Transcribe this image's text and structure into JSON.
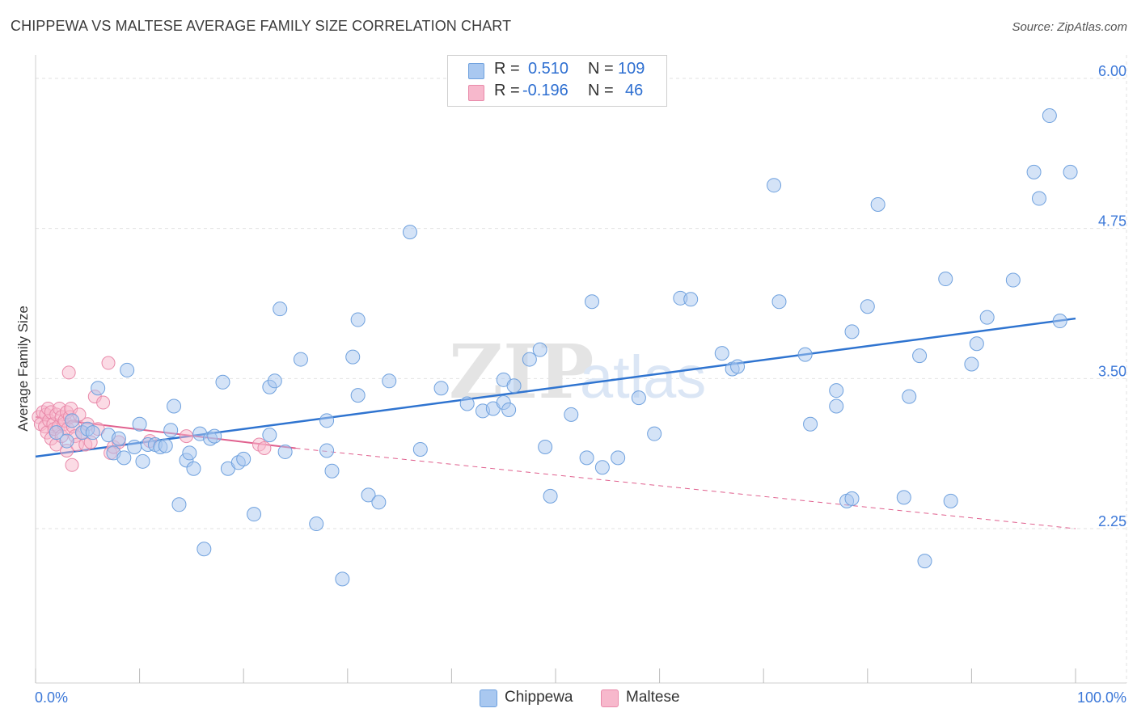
{
  "title": "CHIPPEWA VS MALTESE AVERAGE FAMILY SIZE CORRELATION CHART",
  "source": "Source: ZipAtlas.com",
  "watermark": {
    "zip": "ZIP",
    "atlas": "atlas"
  },
  "legend": {
    "rows": [
      {
        "r_label": "R =",
        "r_value": "0.510",
        "n_label": "N =",
        "n_value": "109",
        "color": "#6fa8e8"
      },
      {
        "r_label": "R =",
        "r_value": "-0.196",
        "n_label": "N =",
        "n_value": "46",
        "color": "#f090b0"
      }
    ]
  },
  "bottom_legend": [
    "Chippewa",
    "Maltese"
  ],
  "colors": {
    "chippewa_fill": "#a9c8f0",
    "chippewa_stroke": "#6fa1de",
    "chippewa_line": "#2f74d0",
    "maltese_fill": "#f7b8cc",
    "maltese_stroke": "#e98aaa",
    "maltese_line": "#e0608e",
    "axis_text": "#3c78d8"
  },
  "chart_data": {
    "type": "scatter",
    "title": "CHIPPEWA VS MALTESE AVERAGE FAMILY SIZE CORRELATION CHART",
    "xlabel": "",
    "ylabel": "Average Family Size",
    "xlim": [
      0,
      100
    ],
    "ylim": [
      1.25,
      6.1
    ],
    "x_tick_labels": [
      "0.0%",
      "100.0%"
    ],
    "y_ticks": [
      2.25,
      3.5,
      4.75,
      6.0
    ],
    "y_tick_labels": [
      "2.25",
      "3.50",
      "4.75",
      "6.00"
    ],
    "grid": true,
    "series": [
      {
        "name": "Chippewa",
        "r": 0.51,
        "n": 109,
        "trend": {
          "x": [
            0,
            100
          ],
          "y": [
            2.85,
            4.0
          ]
        },
        "points": [
          [
            2.0,
            3.05
          ],
          [
            3.0,
            2.98
          ],
          [
            3.5,
            3.15
          ],
          [
            4.5,
            3.05
          ],
          [
            5.0,
            3.08
          ],
          [
            5.5,
            3.05
          ],
          [
            6.0,
            3.42
          ],
          [
            7.0,
            3.03
          ],
          [
            7.5,
            2.88
          ],
          [
            8.0,
            3.0
          ],
          [
            8.5,
            2.84
          ],
          [
            8.8,
            3.57
          ],
          [
            9.5,
            2.93
          ],
          [
            10.0,
            3.12
          ],
          [
            10.3,
            2.81
          ],
          [
            10.8,
            2.95
          ],
          [
            11.5,
            2.95
          ],
          [
            12.0,
            2.93
          ],
          [
            12.5,
            2.94
          ],
          [
            13.0,
            3.07
          ],
          [
            13.3,
            3.27
          ],
          [
            13.8,
            2.45
          ],
          [
            14.5,
            2.82
          ],
          [
            14.8,
            2.88
          ],
          [
            15.2,
            2.75
          ],
          [
            15.8,
            3.04
          ],
          [
            16.2,
            2.08
          ],
          [
            16.8,
            3.0
          ],
          [
            17.2,
            3.02
          ],
          [
            18.0,
            3.47
          ],
          [
            18.5,
            2.75
          ],
          [
            19.5,
            2.8
          ],
          [
            20.0,
            2.83
          ],
          [
            21.0,
            2.37
          ],
          [
            22.5,
            3.03
          ],
          [
            22.5,
            3.43
          ],
          [
            23.0,
            3.48
          ],
          [
            23.5,
            4.08
          ],
          [
            24.0,
            2.89
          ],
          [
            25.5,
            3.66
          ],
          [
            27.0,
            2.29
          ],
          [
            28.0,
            3.15
          ],
          [
            28.0,
            2.9
          ],
          [
            28.5,
            2.73
          ],
          [
            29.5,
            1.83
          ],
          [
            30.5,
            3.68
          ],
          [
            31.0,
            3.99
          ],
          [
            31.0,
            3.36
          ],
          [
            32.0,
            2.53
          ],
          [
            33.0,
            2.47
          ],
          [
            34.0,
            3.48
          ],
          [
            36.0,
            4.72
          ],
          [
            37.0,
            2.91
          ],
          [
            39.0,
            3.42
          ],
          [
            41.5,
            3.29
          ],
          [
            43.0,
            3.23
          ],
          [
            44.0,
            3.25
          ],
          [
            45.0,
            3.49
          ],
          [
            45.0,
            3.3
          ],
          [
            45.5,
            3.24
          ],
          [
            46.0,
            3.44
          ],
          [
            47.5,
            3.66
          ],
          [
            48.5,
            3.74
          ],
          [
            49.0,
            2.93
          ],
          [
            49.5,
            2.52
          ],
          [
            51.5,
            3.2
          ],
          [
            53.0,
            2.84
          ],
          [
            53.5,
            4.14
          ],
          [
            54.5,
            2.76
          ],
          [
            56.0,
            2.84
          ],
          [
            58.0,
            3.34
          ],
          [
            59.5,
            3.04
          ],
          [
            62.0,
            4.17
          ],
          [
            63.0,
            4.16
          ],
          [
            66.0,
            3.71
          ],
          [
            67.0,
            3.58
          ],
          [
            67.5,
            3.6
          ],
          [
            71.0,
            5.11
          ],
          [
            71.5,
            4.14
          ],
          [
            74.0,
            3.7
          ],
          [
            74.5,
            3.12
          ],
          [
            77.0,
            3.27
          ],
          [
            77.0,
            3.4
          ],
          [
            78.0,
            2.48
          ],
          [
            78.5,
            2.5
          ],
          [
            78.5,
            3.89
          ],
          [
            80.0,
            4.1
          ],
          [
            81.0,
            4.95
          ],
          [
            83.5,
            2.51
          ],
          [
            84.0,
            3.35
          ],
          [
            85.0,
            3.69
          ],
          [
            85.5,
            1.98
          ],
          [
            87.5,
            4.33
          ],
          [
            88.0,
            2.48
          ],
          [
            90.0,
            3.62
          ],
          [
            90.5,
            3.79
          ],
          [
            91.5,
            4.01
          ],
          [
            94.0,
            4.32
          ],
          [
            96.0,
            5.22
          ],
          [
            96.5,
            5.0
          ],
          [
            97.5,
            5.69
          ],
          [
            98.5,
            3.98
          ],
          [
            99.5,
            5.22
          ]
        ]
      },
      {
        "name": "Maltese",
        "r": -0.196,
        "n": 46,
        "trend": {
          "x": [
            0,
            25
          ],
          "y": [
            3.18,
            2.92
          ],
          "dashed_to": [
            100,
            2.25
          ]
        },
        "points": [
          [
            0.3,
            3.18
          ],
          [
            0.5,
            3.12
          ],
          [
            0.7,
            3.22
          ],
          [
            0.9,
            3.1
          ],
          [
            1.0,
            3.2
          ],
          [
            1.1,
            3.05
          ],
          [
            1.2,
            3.25
          ],
          [
            1.3,
            3.15
          ],
          [
            1.5,
            3.0
          ],
          [
            1.5,
            3.22
          ],
          [
            1.7,
            3.12
          ],
          [
            1.8,
            3.08
          ],
          [
            2.0,
            3.2
          ],
          [
            2.0,
            2.95
          ],
          [
            2.2,
            3.1
          ],
          [
            2.3,
            3.25
          ],
          [
            2.5,
            3.18
          ],
          [
            2.5,
            3.02
          ],
          [
            2.7,
            3.12
          ],
          [
            2.8,
            3.15
          ],
          [
            3.0,
            3.22
          ],
          [
            3.0,
            2.9
          ],
          [
            3.1,
            3.08
          ],
          [
            3.2,
            3.55
          ],
          [
            3.3,
            3.18
          ],
          [
            3.4,
            3.25
          ],
          [
            3.5,
            2.78
          ],
          [
            3.6,
            3.1
          ],
          [
            3.8,
            3.02
          ],
          [
            4.0,
            2.95
          ],
          [
            4.2,
            3.2
          ],
          [
            4.5,
            3.05
          ],
          [
            4.8,
            2.95
          ],
          [
            5.0,
            3.12
          ],
          [
            5.3,
            2.97
          ],
          [
            5.7,
            3.35
          ],
          [
            6.0,
            3.08
          ],
          [
            6.5,
            3.3
          ],
          [
            7.0,
            3.63
          ],
          [
            7.2,
            2.88
          ],
          [
            7.5,
            2.93
          ],
          [
            8.0,
            2.97
          ],
          [
            11.0,
            2.98
          ],
          [
            14.5,
            3.02
          ],
          [
            21.5,
            2.95
          ],
          [
            22.0,
            2.92
          ]
        ]
      }
    ]
  }
}
